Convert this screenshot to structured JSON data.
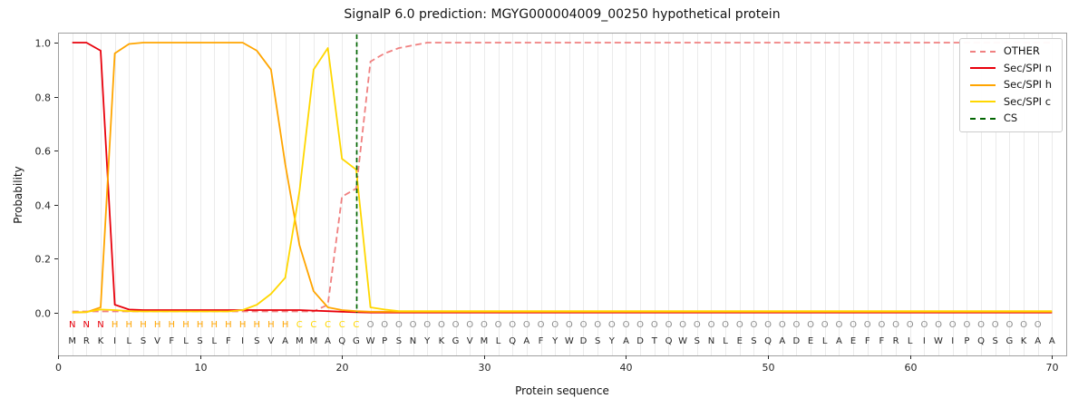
{
  "chart_data": {
    "type": "line",
    "title": "SignalP 6.0 prediction: MGYG000004009_00250 hypothetical protein",
    "xlabel": "Protein sequence",
    "ylabel": "Probability",
    "xlim": [
      0,
      71
    ],
    "ylim": [
      0,
      1.05
    ],
    "x_ticks": [
      0,
      10,
      20,
      30,
      40,
      50,
      60,
      70
    ],
    "y_ticks": [
      0,
      0.2,
      0.4,
      0.6,
      0.8,
      1
    ],
    "grid": "light vertical gridline at every residue position",
    "legend_position": "upper right",
    "cs_position": 21,
    "sequence": "MRKILSVFLSLFISVAMMAQGWPSNYKGVMLQAFYWDSYADTQWSNLESQADELAEFFRLIWIPQSGKAA",
    "region_labels": "NNNHHHHHHHHHHHHHCCCCCOOOOOOOOOOOOOOOOOOOOOOOOOOOOOOOOOOOOOOOOOOOOOOOO",
    "region_colors": {
      "N": "#e8000b",
      "H": "#ffa500",
      "C": "#ffd700",
      "O": "#8c8c8c"
    },
    "sequence_color": "#262626",
    "series": [
      {
        "name": "OTHER",
        "color": "#f08080",
        "style": "dashed",
        "values": [
          0.005,
          0.005,
          0.005,
          0.005,
          0.005,
          0.005,
          0.005,
          0.005,
          0.005,
          0.005,
          0.005,
          0.005,
          0.005,
          0.005,
          0.005,
          0.005,
          0.005,
          0.005,
          0.03,
          0.43,
          0.46,
          0.93,
          0.96,
          0.98,
          0.99,
          1.0,
          1.0,
          1.0,
          1.0,
          1.0,
          1.0,
          1.0,
          1.0,
          1.0,
          1.0,
          1.0,
          1.0,
          1.0,
          1.0,
          1.0,
          1.0,
          1.0,
          1.0,
          1.0,
          1.0,
          1.0,
          1.0,
          1.0,
          1.0,
          1.0,
          1.0,
          1.0,
          1.0,
          1.0,
          1.0,
          1.0,
          1.0,
          1.0,
          1.0,
          1.0,
          1.0,
          1.0,
          1.0,
          1.0,
          1.0,
          1.0,
          1.0,
          1.0,
          1.0,
          1.0
        ]
      },
      {
        "name": "Sec/SPI n",
        "color": "#e8000b",
        "style": "solid",
        "values": [
          1.0,
          1.0,
          0.97,
          0.03,
          0.012,
          0.01,
          0.01,
          0.01,
          0.01,
          0.01,
          0.01,
          0.01,
          0.01,
          0.01,
          0.01,
          0.01,
          0.01,
          0.008,
          0.006,
          0.004,
          0.002,
          0.001,
          0.001,
          0.001,
          0.001,
          0.001,
          0.001,
          0.001,
          0.001,
          0.001,
          0.001,
          0.001,
          0.001,
          0.001,
          0.001,
          0.001,
          0.001,
          0.001,
          0.001,
          0.001,
          0.001,
          0.001,
          0.001,
          0.001,
          0.001,
          0.001,
          0.001,
          0.001,
          0.001,
          0.001,
          0.001,
          0.001,
          0.001,
          0.001,
          0.001,
          0.001,
          0.001,
          0.001,
          0.001,
          0.001,
          0.001,
          0.001,
          0.001,
          0.001,
          0.001,
          0.001,
          0.001,
          0.001,
          0.001,
          0.001
        ]
      },
      {
        "name": "Sec/SPI h",
        "color": "#ffa500",
        "style": "solid",
        "values": [
          0.001,
          0.002,
          0.02,
          0.96,
          0.995,
          1.0,
          1.0,
          1.0,
          1.0,
          1.0,
          1.0,
          1.0,
          1.0,
          0.97,
          0.9,
          0.55,
          0.25,
          0.08,
          0.02,
          0.01,
          0.006,
          0.004,
          0.004,
          0.004,
          0.004,
          0.004,
          0.004,
          0.004,
          0.004,
          0.004,
          0.004,
          0.004,
          0.004,
          0.004,
          0.004,
          0.004,
          0.004,
          0.004,
          0.004,
          0.004,
          0.004,
          0.004,
          0.004,
          0.004,
          0.004,
          0.004,
          0.004,
          0.004,
          0.004,
          0.004,
          0.004,
          0.004,
          0.004,
          0.004,
          0.004,
          0.004,
          0.004,
          0.004,
          0.004,
          0.004,
          0.004,
          0.004,
          0.004,
          0.004,
          0.004,
          0.004,
          0.004,
          0.004,
          0.004,
          0.004
        ]
      },
      {
        "name": "Sec/SPI c",
        "color": "#ffd700",
        "style": "solid",
        "values": [
          0.002,
          0.003,
          0.012,
          0.01,
          0.006,
          0.005,
          0.005,
          0.005,
          0.005,
          0.005,
          0.005,
          0.005,
          0.01,
          0.03,
          0.07,
          0.13,
          0.45,
          0.9,
          0.98,
          0.57,
          0.53,
          0.02,
          0.012,
          0.006,
          0.006,
          0.006,
          0.006,
          0.006,
          0.006,
          0.006,
          0.006,
          0.006,
          0.006,
          0.006,
          0.006,
          0.006,
          0.006,
          0.006,
          0.006,
          0.006,
          0.006,
          0.006,
          0.006,
          0.006,
          0.006,
          0.006,
          0.006,
          0.006,
          0.006,
          0.006,
          0.006,
          0.006,
          0.006,
          0.006,
          0.006,
          0.006,
          0.006,
          0.006,
          0.006,
          0.006,
          0.006,
          0.006,
          0.006,
          0.006,
          0.006,
          0.006,
          0.006,
          0.006,
          0.006,
          0.006
        ]
      },
      {
        "name": "CS",
        "color": "#006400",
        "style": "dashed-vertical",
        "x": 21
      }
    ]
  }
}
